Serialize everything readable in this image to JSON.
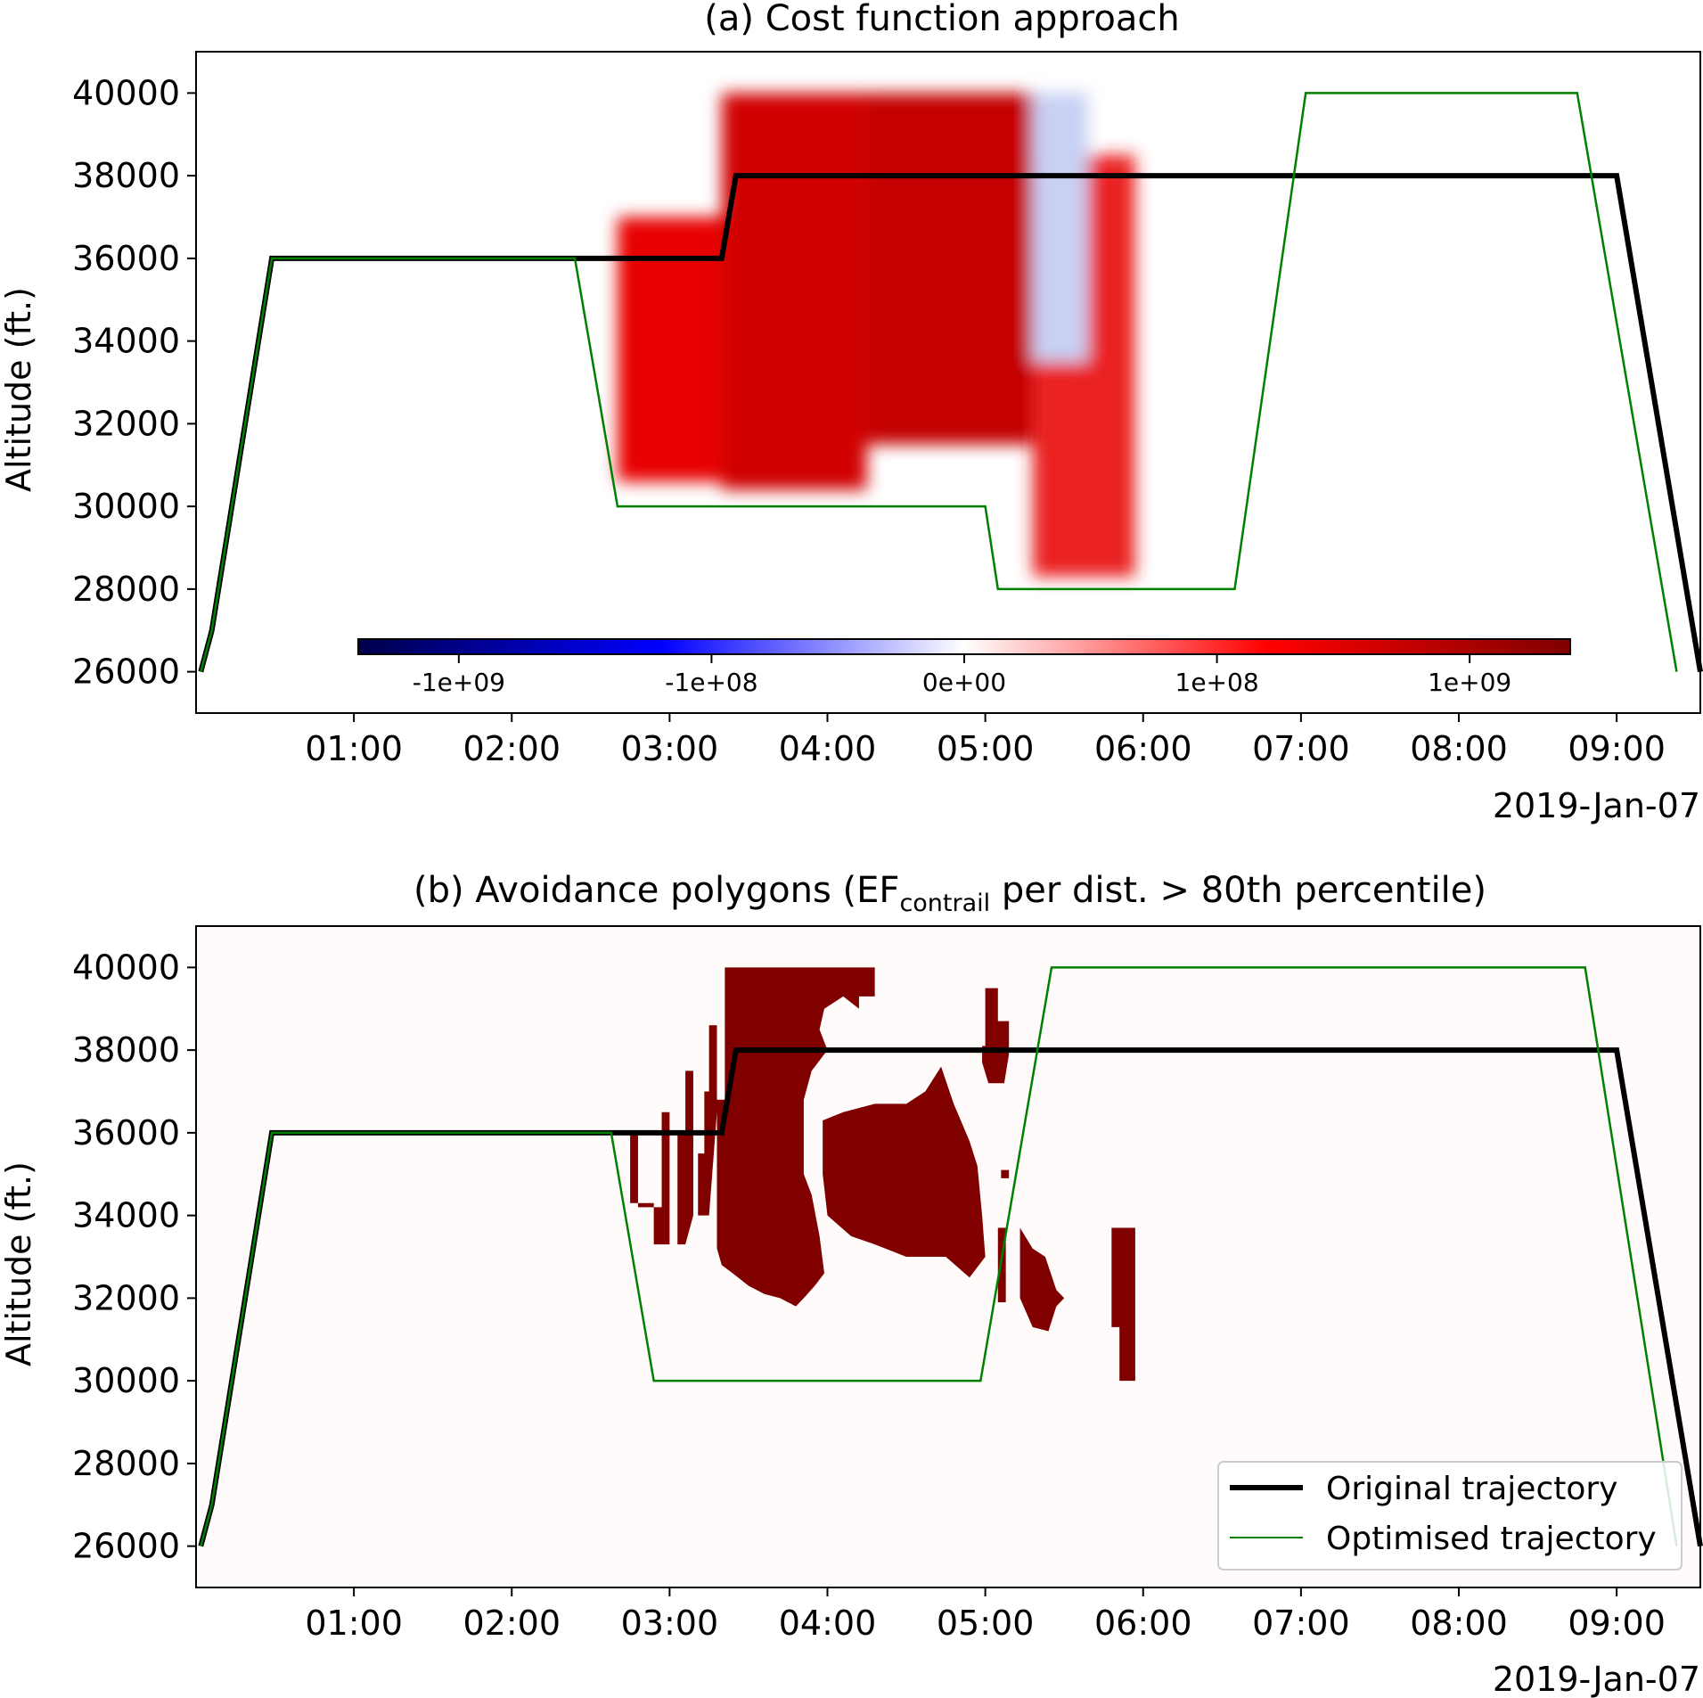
{
  "chart_data": [
    {
      "type": "line",
      "title": "(a) Cost function approach",
      "title_sub": "",
      "title_after": "",
      "ylabel": "Altitude (ft.)",
      "xlabel": "",
      "date_label": "2019-Jan-07",
      "x_unit": "hours after 00:00, 2019-Jan-07",
      "xlim": [
        0.0,
        9.53
      ],
      "ylim": [
        25000,
        41000
      ],
      "xticks": [
        "01:00",
        "02:00",
        "03:00",
        "04:00",
        "05:00",
        "06:00",
        "07:00",
        "08:00",
        "09:00"
      ],
      "yticks": [
        40000,
        38000,
        36000,
        34000,
        32000,
        30000,
        28000,
        26000
      ],
      "grid": false,
      "legend": null,
      "series": [
        {
          "name": "Original trajectory",
          "color": "#000000",
          "x": [
            0.03,
            0.1,
            0.48,
            3.33,
            3.42,
            9.0,
            9.53
          ],
          "y": [
            26000,
            27000,
            36000,
            36000,
            38000,
            38000,
            26000
          ]
        },
        {
          "name": "Optimised trajectory",
          "color": "#008000",
          "x": [
            0.03,
            0.1,
            0.48,
            2.4,
            2.67,
            5.0,
            5.08,
            6.58,
            7.03,
            8.75,
            9.38
          ],
          "y": [
            26000,
            27000,
            36000,
            36000,
            30000,
            30000,
            28000,
            28000,
            40000,
            40000,
            26000
          ]
        }
      ],
      "colorbar": {
        "colormap": "seismic",
        "scale": "symlog",
        "ticks": [
          {
            "label": "-1e+09",
            "value": -1000000000
          },
          {
            "label": "-1e+08",
            "value": -100000000
          },
          {
            "label": "0e+00",
            "value": 0
          },
          {
            "label": "1e+08",
            "value": 100000000
          },
          {
            "label": "1e+09",
            "value": 1000000000
          }
        ]
      },
      "heatmap_regions": [
        {
          "x0": 2.67,
          "x1": 3.33,
          "y0": 30600,
          "y1": 37000,
          "color": "#e80000"
        },
        {
          "x0": 3.33,
          "x1": 4.25,
          "y0": 30400,
          "y1": 40000,
          "color": "#d00000"
        },
        {
          "x0": 4.25,
          "x1": 5.3,
          "y0": 31500,
          "y1": 40000,
          "color": "#c40000"
        },
        {
          "x0": 5.3,
          "x1": 5.95,
          "y0": 28300,
          "y1": 38500,
          "color": "#ea2020"
        },
        {
          "x0": 5.3,
          "x1": 5.65,
          "y0": 33500,
          "y1": 40000,
          "color": "#c8d0f4"
        }
      ]
    },
    {
      "type": "line",
      "title": "(b) Avoidance polygons (EF",
      "title_sub": "contrail",
      "title_after": " per dist. > 80th percentile)",
      "ylabel": "Altitude (ft.)",
      "xlabel": "",
      "date_label": "2019-Jan-07",
      "x_unit": "hours after 00:00, 2019-Jan-07",
      "xlim": [
        0.0,
        9.53
      ],
      "ylim": [
        25000,
        41000
      ],
      "xticks": [
        "01:00",
        "02:00",
        "03:00",
        "04:00",
        "05:00",
        "06:00",
        "07:00",
        "08:00",
        "09:00"
      ],
      "yticks": [
        40000,
        38000,
        36000,
        34000,
        32000,
        30000,
        28000,
        26000
      ],
      "grid": false,
      "legend": {
        "placement": "lower-right",
        "entries": [
          "Original trajectory",
          "Optimised trajectory"
        ]
      },
      "series": [
        {
          "name": "Original trajectory",
          "color": "#000000",
          "x": [
            0.03,
            0.1,
            0.48,
            3.33,
            3.42,
            9.0,
            9.53
          ],
          "y": [
            26000,
            27000,
            36000,
            36000,
            38000,
            38000,
            26000
          ]
        },
        {
          "name": "Optimised trajectory",
          "color": "#008000",
          "x": [
            0.03,
            0.1,
            0.48,
            2.63,
            2.9,
            4.97,
            5.42,
            8.8,
            9.38
          ],
          "y": [
            26000,
            27000,
            36000,
            36000,
            30000,
            30000,
            40000,
            40000,
            26000
          ]
        }
      ],
      "polygon_color": "#800000",
      "polygons": [
        [
          [
            2.75,
            36000
          ],
          [
            2.8,
            36000
          ],
          [
            2.8,
            34200
          ],
          [
            2.95,
            34200
          ],
          [
            2.95,
            36500
          ],
          [
            3.0,
            36500
          ],
          [
            3.0,
            33300
          ],
          [
            2.9,
            33300
          ],
          [
            2.9,
            34300
          ],
          [
            2.75,
            34300
          ]
        ],
        [
          [
            3.05,
            36000
          ],
          [
            3.1,
            36000
          ],
          [
            3.1,
            37500
          ],
          [
            3.15,
            37500
          ],
          [
            3.15,
            34000
          ],
          [
            3.1,
            33300
          ],
          [
            3.05,
            33300
          ]
        ],
        [
          [
            3.18,
            35500
          ],
          [
            3.22,
            35500
          ],
          [
            3.22,
            37000
          ],
          [
            3.25,
            37000
          ],
          [
            3.25,
            38600
          ],
          [
            3.3,
            38600
          ],
          [
            3.3,
            36500
          ],
          [
            3.28,
            35500
          ],
          [
            3.25,
            34000
          ],
          [
            3.18,
            34000
          ]
        ],
        [
          [
            3.3,
            36800
          ],
          [
            3.35,
            36800
          ],
          [
            3.35,
            40000
          ],
          [
            4.3,
            40000
          ],
          [
            4.3,
            39300
          ],
          [
            4.2,
            39300
          ],
          [
            4.2,
            39000
          ],
          [
            4.1,
            39300
          ],
          [
            3.98,
            39000
          ],
          [
            3.95,
            38500
          ],
          [
            4.0,
            38000
          ],
          [
            3.9,
            37500
          ],
          [
            3.85,
            36800
          ],
          [
            3.85,
            35000
          ],
          [
            3.9,
            34500
          ],
          [
            3.95,
            33500
          ],
          [
            3.98,
            32600
          ],
          [
            3.92,
            32300
          ],
          [
            3.85,
            32000
          ],
          [
            3.8,
            31800
          ],
          [
            3.7,
            32000
          ],
          [
            3.6,
            32100
          ],
          [
            3.5,
            32300
          ],
          [
            3.4,
            32600
          ],
          [
            3.33,
            32800
          ],
          [
            3.3,
            33200
          ]
        ],
        [
          [
            3.97,
            36300
          ],
          [
            4.1,
            36500
          ],
          [
            4.3,
            36700
          ],
          [
            4.5,
            36700
          ],
          [
            4.62,
            37000
          ],
          [
            4.72,
            37600
          ],
          [
            4.8,
            36700
          ],
          [
            4.9,
            35800
          ],
          [
            4.95,
            35200
          ],
          [
            4.98,
            34000
          ],
          [
            5.0,
            33000
          ],
          [
            4.9,
            32500
          ],
          [
            4.75,
            33000
          ],
          [
            4.5,
            33000
          ],
          [
            4.3,
            33300
          ],
          [
            4.15,
            33500
          ],
          [
            4.0,
            34000
          ],
          [
            3.97,
            35000
          ]
        ],
        [
          [
            4.98,
            38100
          ],
          [
            5.0,
            38100
          ],
          [
            5.0,
            39500
          ],
          [
            5.08,
            39500
          ],
          [
            5.08,
            38700
          ],
          [
            5.15,
            38700
          ],
          [
            5.15,
            37900
          ],
          [
            5.12,
            37200
          ],
          [
            5.02,
            37200
          ],
          [
            4.98,
            37700
          ]
        ],
        [
          [
            5.1,
            35100
          ],
          [
            5.15,
            35100
          ],
          [
            5.15,
            34900
          ],
          [
            5.1,
            34900
          ]
        ],
        [
          [
            5.08,
            33700
          ],
          [
            5.13,
            33700
          ],
          [
            5.13,
            31900
          ],
          [
            5.08,
            31900
          ]
        ],
        [
          [
            5.22,
            33700
          ],
          [
            5.3,
            33200
          ],
          [
            5.38,
            33000
          ],
          [
            5.45,
            32200
          ],
          [
            5.5,
            32000
          ],
          [
            5.45,
            31800
          ],
          [
            5.4,
            31200
          ],
          [
            5.3,
            31300
          ],
          [
            5.22,
            32000
          ]
        ],
        [
          [
            5.8,
            33700
          ],
          [
            5.95,
            33700
          ],
          [
            5.95,
            30000
          ],
          [
            5.85,
            30000
          ],
          [
            5.85,
            31300
          ],
          [
            5.8,
            31300
          ]
        ]
      ]
    }
  ]
}
